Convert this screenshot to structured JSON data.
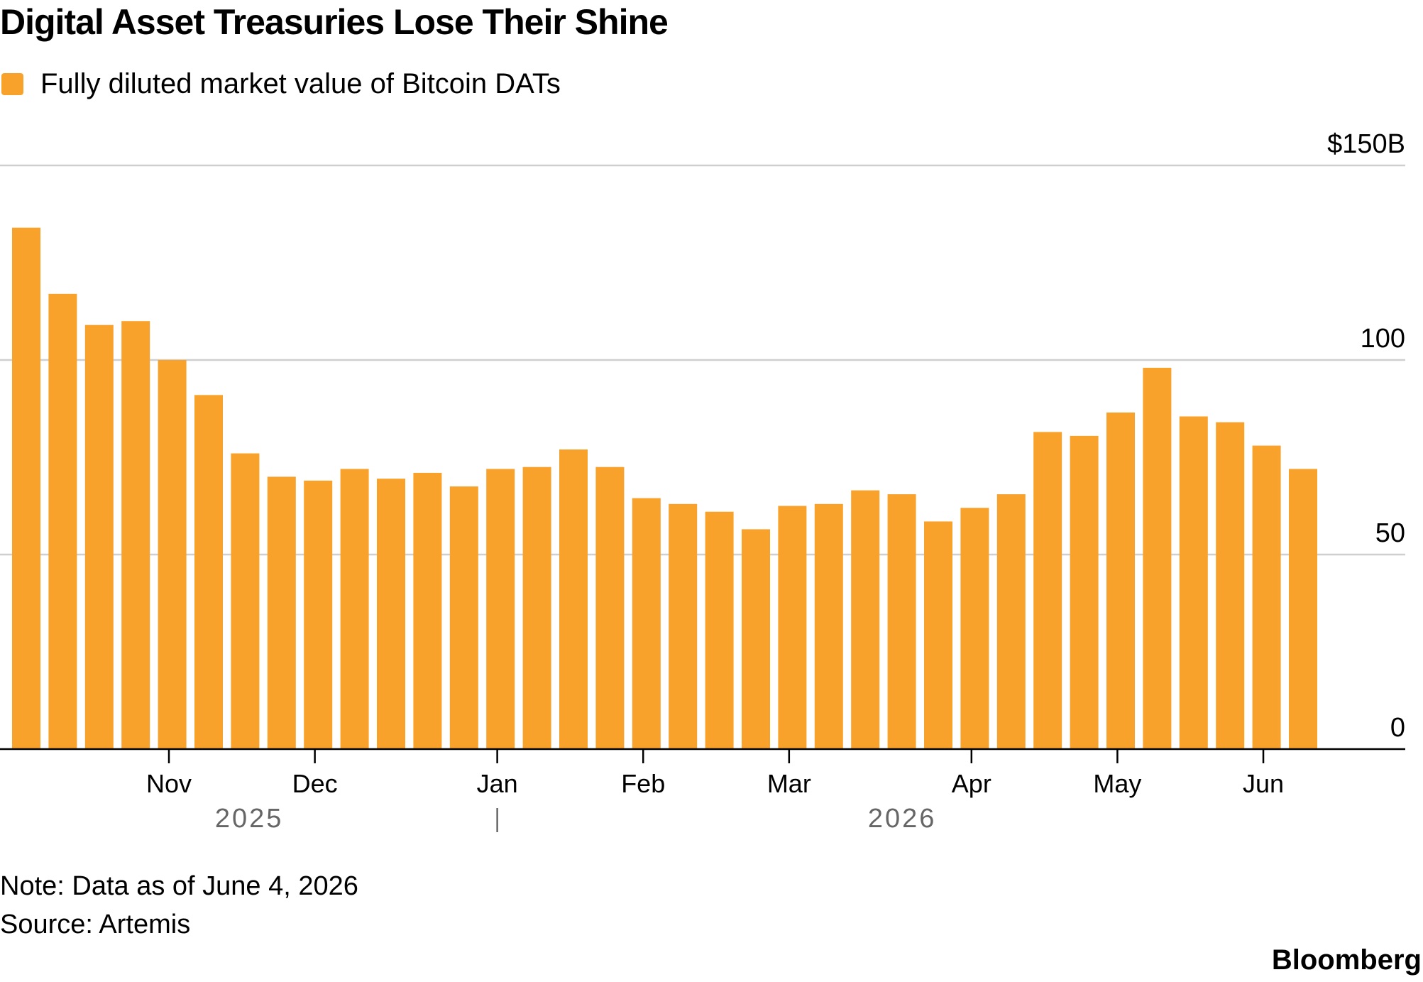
{
  "header": {
    "title": "Digital Asset Treasuries Lose Their Shine"
  },
  "legend": {
    "label": "Fully diluted market value of Bitcoin DATs",
    "color": "#F9A22B"
  },
  "footer": {
    "note": "Note: Data as of June 4, 2026",
    "source": "Source: Artemis",
    "brand": "Bloomberg"
  },
  "chart_data": {
    "type": "bar",
    "title": "Digital Asset Treasuries Lose Their Shine",
    "series": [
      {
        "name": "Fully diluted market value of Bitcoin DATs",
        "color": "#F9A22B",
        "values": [
          134,
          117,
          109,
          110,
          100,
          91,
          76,
          70,
          69,
          72,
          69.5,
          71,
          67.5,
          72,
          72.5,
          77,
          72.5,
          64.5,
          63,
          61,
          56.5,
          62.5,
          63,
          66.5,
          65.5,
          58.5,
          62,
          65.5,
          81.5,
          80.5,
          86.5,
          98,
          85.5,
          84,
          78,
          72
        ]
      }
    ],
    "x_axis": {
      "month_ticks": [
        {
          "label": "Nov",
          "position": 4.3
        },
        {
          "label": "Dec",
          "position": 8.3
        },
        {
          "label": "Jan",
          "position": 13.3
        },
        {
          "label": "Feb",
          "position": 17.3
        },
        {
          "label": "Mar",
          "position": 21.3
        },
        {
          "label": "Apr",
          "position": 26.3
        },
        {
          "label": "May",
          "position": 30.3
        },
        {
          "label": "Jun",
          "position": 34.3
        }
      ],
      "year_labels": [
        {
          "label": "2025",
          "position": 6.5
        },
        {
          "label": "2026",
          "position": 24.4
        }
      ],
      "year_divider_position": 13.3
    },
    "y_axis": {
      "ylim": [
        0,
        150
      ],
      "ticks": [
        {
          "value": 0,
          "label": "0"
        },
        {
          "value": 50,
          "label": "50"
        },
        {
          "value": 100,
          "label": "100"
        },
        {
          "value": 150,
          "label": "$150B"
        }
      ],
      "position": "right"
    },
    "grid": true
  }
}
